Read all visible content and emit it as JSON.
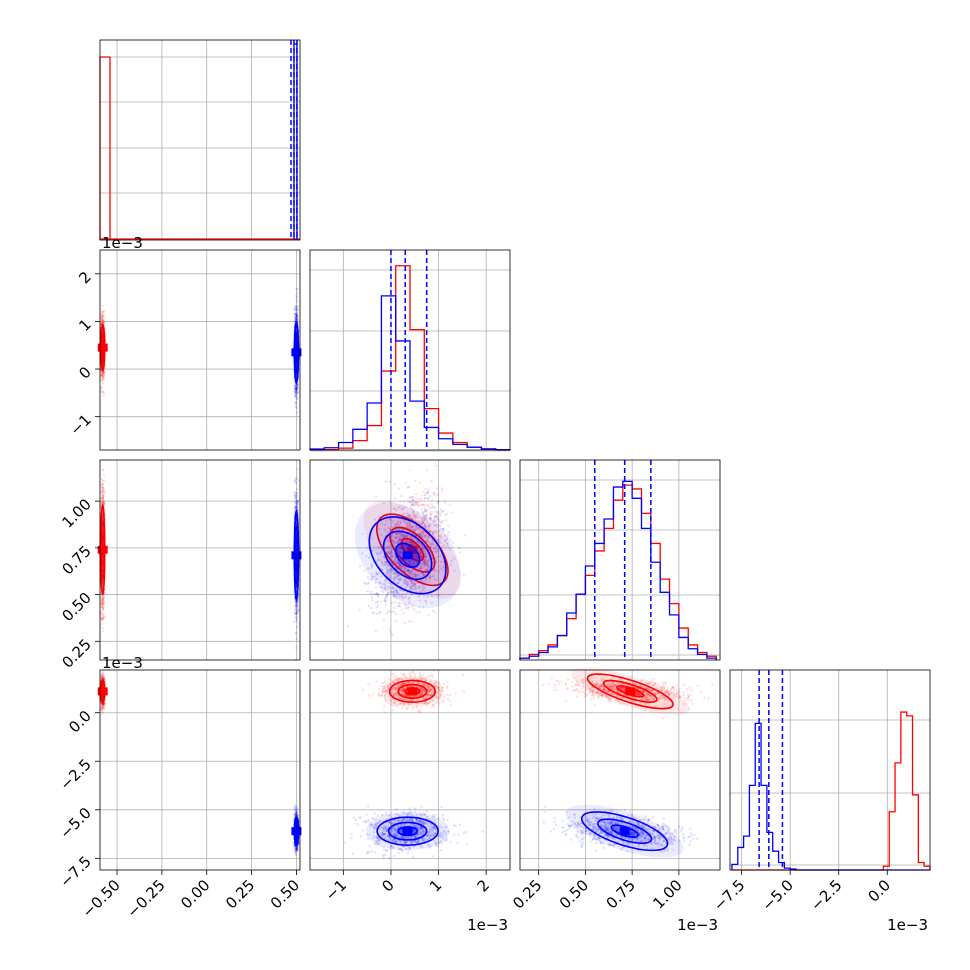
{
  "chart_data": {
    "type": "corner",
    "grid": true,
    "colors": {
      "red": "#ff0000",
      "blue": "#0000ff"
    },
    "series": [
      {
        "name": "",
        "color": "#ff0000",
        "param_0": {
          "mean": -0.58,
          "sd": 0.005
        },
        "param_1": {
          "mean": 0.00045,
          "sd": 0.0003
        },
        "param_2": {
          "mean": 0.00074,
          "sd": 0.00015
        },
        "param_3": {
          "mean": 0.0011,
          "sd": 0.00035
        }
      },
      {
        "name": "",
        "color": "#0000ff",
        "param_0": {
          "mean": 0.5,
          "sd": 0.005
        },
        "param_1": {
          "mean": 0.00035,
          "sd": 0.0004
        },
        "param_2": {
          "mean": 0.00071,
          "sd": 0.00015
        },
        "param_3": {
          "mean": -0.0061,
          "sd": 0.00045
        }
      }
    ],
    "quantile_lines": {
      "color": "#0000ff",
      "param_0": [
        0.495,
        0.5,
        0.505
      ],
      "param_1": [
        0.0,
        0.0003,
        0.00075
      ],
      "param_2": [
        0.00055,
        0.00071,
        0.00085
      ],
      "param_3": [
        -0.0066,
        -0.0061,
        -0.0054
      ]
    },
    "diag_hist": {
      "param_0": {
        "red_heights": [
          1.0,
          0,
          0,
          0,
          0,
          0,
          0,
          0,
          0,
          0,
          0,
          0,
          0,
          0,
          0,
          0,
          0,
          0,
          0,
          0
        ],
        "blue_heights": []
      },
      "param_1": {
        "edges": [
          -1.7,
          -1.4,
          -1.1,
          -0.8,
          -0.5,
          -0.2,
          0.1,
          0.4,
          0.7,
          1.0,
          1.3,
          1.6,
          1.9,
          2.2,
          2.5
        ],
        "red": [
          0,
          0.002,
          0.01,
          0.05,
          0.13,
          0.42,
          0.98,
          0.64,
          0.22,
          0.09,
          0.04,
          0.015,
          0.005,
          0
        ],
        "blue": [
          0.005,
          0.012,
          0.04,
          0.11,
          0.25,
          0.82,
          0.58,
          0.26,
          0.12,
          0.06,
          0.03,
          0.015,
          0.006,
          0.002
        ]
      },
      "param_2": {
        "edges": [
          0.15,
          0.2,
          0.25,
          0.3,
          0.35,
          0.4,
          0.45,
          0.5,
          0.55,
          0.6,
          0.65,
          0.7,
          0.75,
          0.8,
          0.85,
          0.9,
          0.95,
          1.0,
          1.05,
          1.1,
          1.15,
          1.2
        ],
        "red": [
          0.01,
          0.03,
          0.05,
          0.08,
          0.13,
          0.22,
          0.35,
          0.45,
          0.58,
          0.7,
          0.85,
          0.93,
          0.91,
          0.78,
          0.62,
          0.43,
          0.3,
          0.17,
          0.08,
          0.04,
          0.02
        ],
        "blue": [
          0.01,
          0.02,
          0.04,
          0.07,
          0.13,
          0.25,
          0.35,
          0.5,
          0.62,
          0.75,
          0.92,
          0.95,
          0.86,
          0.7,
          0.52,
          0.36,
          0.24,
          0.12,
          0.06,
          0.03,
          0.01
        ]
      },
      "param_3": {
        "edges": [
          -8.0,
          -7.7,
          -7.4,
          -7.1,
          -6.8,
          -6.5,
          -6.2,
          -5.9,
          -5.6,
          -5.3,
          -5.0,
          -4.7,
          -4.4,
          -4.1,
          -3.8,
          -3.5,
          -3.2,
          -2.9,
          -2.6,
          -2.3,
          -2.0,
          -1.7,
          -1.4,
          -1.1,
          -0.8,
          -0.5,
          -0.2,
          0.1,
          0.4,
          0.7,
          1.0,
          1.3,
          1.6,
          1.9,
          2.2
        ],
        "red": [
          0,
          0,
          0,
          0,
          0,
          0,
          0,
          0,
          0,
          0,
          0,
          0,
          0,
          0,
          0,
          0,
          0,
          0,
          0,
          0,
          0,
          0,
          0,
          0,
          0,
          0,
          0.02,
          0.31,
          0.57,
          0.84,
          0.82,
          0.4,
          0.04,
          0.02
        ],
        "blue": [
          0.03,
          0.12,
          0.18,
          0.45,
          0.78,
          0.45,
          0.2,
          0.1,
          0.04,
          0.01,
          0.005,
          0,
          0,
          0,
          0,
          0,
          0,
          0,
          0,
          0,
          0,
          0,
          0,
          0,
          0,
          0,
          0,
          0,
          0,
          0,
          0,
          0,
          0,
          0
        ]
      }
    },
    "axes": {
      "x_param_0": {
        "ticks": [
          -0.5,
          -0.25,
          0.0,
          0.25,
          0.5
        ],
        "tick_labels": [
          "−0.50",
          "−0.25",
          "0.00",
          "0.25",
          "0.50"
        ],
        "range": [
          -0.595,
          0.52
        ]
      },
      "x_param_1": {
        "ticks": [
          -1,
          0,
          1,
          2
        ],
        "tick_labels": [
          "−1",
          "0",
          "1",
          "2"
        ],
        "range": [
          -1.7,
          2.5
        ],
        "offset": "1e−3"
      },
      "x_param_2": {
        "ticks": [
          0.25,
          0.5,
          0.75,
          1.0
        ],
        "tick_labels": [
          "0.25",
          "0.50",
          "0.75",
          "1.00"
        ],
        "range": [
          0.15,
          1.22
        ],
        "offset": "1e−3"
      },
      "x_param_3": {
        "ticks": [
          -7.5,
          -5.0,
          -2.5,
          0.0
        ],
        "tick_labels": [
          "−7.5",
          "−5.0",
          "−2.5",
          "0.0"
        ],
        "range": [
          -8.1,
          2.2
        ],
        "offset": "1e−3"
      },
      "y_param_1": {
        "ticks": [
          -1,
          0,
          1,
          2
        ],
        "tick_labels": [
          "−1",
          "0",
          "1",
          "2"
        ],
        "range": [
          -1.7,
          2.5
        ],
        "offset": "1e−3"
      },
      "y_param_2": {
        "ticks": [
          0.25,
          0.5,
          0.75,
          1.0
        ],
        "tick_labels": [
          "0.25",
          "0.50",
          "0.75",
          "1.00"
        ],
        "range": [
          0.15,
          1.22
        ]
      },
      "y_param_3": {
        "ticks": [
          0.0,
          -2.5,
          -5.0,
          -7.5
        ],
        "tick_labels": [
          "0.0",
          "−2.5",
          "−5.0",
          "−7.5"
        ],
        "range": [
          -8.1,
          2.2
        ],
        "offset": "1e−3"
      }
    }
  }
}
